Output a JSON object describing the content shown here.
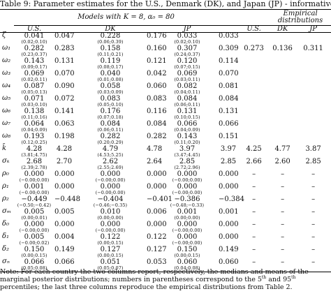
{
  "caption": "Table 9: Parameter estimates for the U.S., Denmark (DK), and Japan (JP) - informative priors",
  "header": {
    "models_group": "Models with K = 8, α₀ = 80",
    "empirical_group": "Empirical distributions",
    "model_cols": [
      "U.S.",
      "DK",
      "JP"
    ],
    "empirical_cols": [
      "U.S.",
      "DK",
      "JP"
    ]
  },
  "rows": [
    {
      "sym": "ζ",
      "us_mean": "0.041",
      "us_ci": "(0.02;0.10)",
      "us_med": "0.047",
      "dk_mean": "0.228",
      "dk_ci": "(0.06;0.39)",
      "dk_med": "0.176",
      "jp_mean": "0.033",
      "jp_ci": "(0.02;0.10)",
      "jp_med": "0.033",
      "e_us": "",
      "e_dk": "",
      "e_jp": ""
    },
    {
      "sym": "ω₁",
      "us_mean": "0.282",
      "us_ci": "(0.23;0.37)",
      "us_med": "0.283",
      "dk_mean": "0.158",
      "dk_ci": "(0.11;0.21)",
      "dk_med": "0.160",
      "jp_mean": "0.307",
      "jp_ci": "(0.24;0.37)",
      "jp_med": "0.309",
      "e_us": "0.273",
      "e_dk": "0.136",
      "e_jp": "0.311"
    },
    {
      "sym": "ω₂",
      "us_mean": "0.143",
      "us_ci": "(0.09;0.17)",
      "us_med": "0.131",
      "dk_mean": "0.119",
      "dk_ci": "(0.08;0.17)",
      "dk_med": "0.121",
      "jp_mean": "0.120",
      "jp_ci": "(0.07;0.15)",
      "jp_med": "0.114",
      "e_us": "",
      "e_dk": "",
      "e_jp": ""
    },
    {
      "sym": "ω₃",
      "us_mean": "0.069",
      "us_ci": "(0.02;0.11)",
      "us_med": "0.070",
      "dk_mean": "0.040",
      "dk_ci": "(0.01;0.08)",
      "dk_med": "0.042",
      "jp_mean": "0.069",
      "jp_ci": "(0.03;0.11)",
      "jp_med": "0.070",
      "e_us": "",
      "e_dk": "",
      "e_jp": ""
    },
    {
      "sym": "ω₄",
      "us_mean": "0.087",
      "us_ci": "(0.05;0.13)",
      "us_med": "0.090",
      "dk_mean": "0.058",
      "dk_ci": "(0.03;0.09)",
      "dk_med": "0.060",
      "jp_mean": "0.082",
      "jp_ci": "(0.04;0.11)",
      "jp_med": "0.081",
      "e_us": "",
      "e_dk": "",
      "e_jp": ""
    },
    {
      "sym": "ω₅",
      "us_mean": "0.071",
      "us_ci": "(0.03;0.10)",
      "us_med": "0.072",
      "dk_mean": "0.083",
      "dk_ci": "(0.05;0.10)",
      "dk_med": "0.083",
      "jp_mean": "0.084",
      "jp_ci": "(0.06;0.11)",
      "jp_med": "0.084",
      "e_us": "",
      "e_dk": "",
      "e_jp": ""
    },
    {
      "sym": "ω₆",
      "us_mean": "0.138",
      "us_ci": "(0.11;0.16)",
      "us_med": "0.141",
      "dk_mean": "0.176",
      "dk_ci": "(0.07;0.18)",
      "dk_med": "0.116",
      "jp_mean": "0.131",
      "jp_ci": "(0.10;0.15)",
      "jp_med": "0.131",
      "e_us": "",
      "e_dk": "",
      "e_jp": ""
    },
    {
      "sym": "ω₇",
      "us_mean": "0.064",
      "us_ci": "(0.04;0.09)",
      "us_med": "0.063",
      "dk_mean": "0.084",
      "dk_ci": "(0.06;0.11)",
      "dk_med": "0.084",
      "jp_mean": "0.066",
      "jp_ci": "(0.04;0.09)",
      "jp_med": "0.066",
      "e_us": "",
      "e_dk": "",
      "e_jp": ""
    },
    {
      "sym": "ω₈",
      "us_mean": "0.193",
      "us_ci": "(0.12;0.25)",
      "us_med": "0.198",
      "dk_mean": "0.282",
      "dk_ci": "(0.20;0.29)",
      "dk_med": "0.282",
      "jp_mean": "0.143",
      "jp_ci": "(0.11;0.20)",
      "jp_med": "0.151",
      "e_us": "",
      "e_dk": "",
      "e_jp": ""
    },
    {
      "sym": "k̄",
      "us_mean": "4.28",
      "us_ci": "(3.81;4.75)",
      "us_med": "4.28",
      "dk_mean": "4.79",
      "dk_ci": "(4.53;5.25)",
      "dk_med": "4.78",
      "jp_mean": "3.97",
      "jp_ci": "(3.47;4.45)",
      "jp_med": "3.97",
      "e_us": "4.25",
      "e_dk": "4.77",
      "e_jp": "3.87"
    },
    {
      "sym": "σₖ",
      "us_mean": "2.68",
      "us_ci": "(2.39;2.78)",
      "us_med": "2.70",
      "dk_mean": "2.62",
      "dk_ci": "(2.55;2.69)",
      "dk_med": "2.64",
      "jp_mean": "2.85",
      "jp_ci": "(2.72;2.96)",
      "jp_med": "2.85",
      "e_us": "2.66",
      "e_dk": "2.60",
      "e_jp": "2.85"
    },
    {
      "sym": "ρ₀",
      "us_mean": "0.000",
      "us_ci": "(−0.00;0.00)",
      "us_med": "0.000",
      "dk_mean": "0.000",
      "dk_ci": "(−0.00;0.00)",
      "dk_med": "0.000",
      "jp_mean": "0.000",
      "jp_ci": "(−0.00;0.00)",
      "jp_med": "0.000",
      "e_us": "–",
      "e_dk": "–",
      "e_jp": "–"
    },
    {
      "sym": "ρ₁",
      "us_mean": "0.001",
      "us_ci": "(−0.00;0.00)",
      "us_med": "0.000",
      "dk_mean": "0.000",
      "dk_ci": "(−0.00;0.00)",
      "dk_med": "0.000",
      "jp_mean": "0.000",
      "jp_ci": "(−0.00;0.00)",
      "jp_med": "0.000",
      "e_us": "–",
      "e_dk": "–",
      "e_jp": "–"
    },
    {
      "sym": "ρ₂",
      "us_mean": "−0.449",
      "us_ci": "(−0.50;−0.42)",
      "us_med": "−0.448",
      "dk_mean": "−0.404",
      "dk_ci": "(−0.46;−0.35)",
      "dk_med": "−0.401",
      "jp_mean": "−0.386",
      "jp_ci": "(−0.48;−0.33)",
      "jp_med": "−0.384",
      "e_us": "–",
      "e_dk": "–",
      "e_jp": "–"
    },
    {
      "sym": "σₘ",
      "us_mean": "0.005",
      "us_ci": "(0.00;0.01)",
      "us_med": "0.005",
      "dk_mean": "0.010",
      "dk_ci": "(0.00;0.00)",
      "dk_med": "0.006",
      "jp_mean": "0.001",
      "jp_ci": "(0.00;0.00)",
      "jp_med": "0.001",
      "e_us": "–",
      "e_dk": "–",
      "e_jp": "–"
    },
    {
      "sym": "δ₀",
      "us_mean": "0.000",
      "us_ci": "(−0.00;0.00)",
      "us_med": "0.000",
      "dk_mean": "0.000",
      "dk_ci": "(−0.00;0.00)",
      "dk_med": "0.000",
      "jp_mean": "0.000",
      "jp_ci": "(−0.00;0.00)",
      "jp_med": "0.000",
      "e_us": "–",
      "e_dk": "–",
      "e_jp": "–"
    },
    {
      "sym": "δ₁",
      "us_mean": "0.005",
      "us_ci": "(−0.00;0.02)",
      "us_med": "0.004",
      "dk_mean": "0.122",
      "dk_ci": "(0.00;0.15)",
      "dk_med": "0.122",
      "jp_mean": "0.000",
      "jp_ci": "(−0.00;0.00)",
      "jp_med": "0.000",
      "e_us": "–",
      "e_dk": "–",
      "e_jp": "–"
    },
    {
      "sym": "δ₂",
      "us_mean": "0.150",
      "us_ci": "(0.00;0.15)",
      "us_med": "0.149",
      "dk_mean": "0.127",
      "dk_ci": "(0.00;0.15)",
      "dk_med": "0.127",
      "jp_mean": "0.150",
      "jp_ci": "(0.00;0.15)",
      "jp_med": "0.149",
      "e_us": "–",
      "e_dk": "–",
      "e_jp": "–"
    },
    {
      "sym": "σₙ",
      "us_mean": "0.066",
      "us_ci": "(0.05;0.08)",
      "us_med": "0.066",
      "dk_mean": "0.051",
      "dk_ci": "(0.05;0.07)",
      "dk_med": "0.053",
      "jp_mean": "0.060",
      "jp_ci": "(0.04;0.08)",
      "jp_med": "0.060",
      "e_us": "–",
      "e_dk": "–",
      "e_jp": "–"
    }
  ],
  "note": {
    "part1": "Note: For each country the two columns report, respectively, the medians and means of the marginal posterior distributions; numbers in parentheses correspond to the 5",
    "sup1": "th",
    "part2": " and 95",
    "sup2": "th",
    "part3": " percentiles; the last three columns reproduce the empirical distributions from Table 2."
  }
}
